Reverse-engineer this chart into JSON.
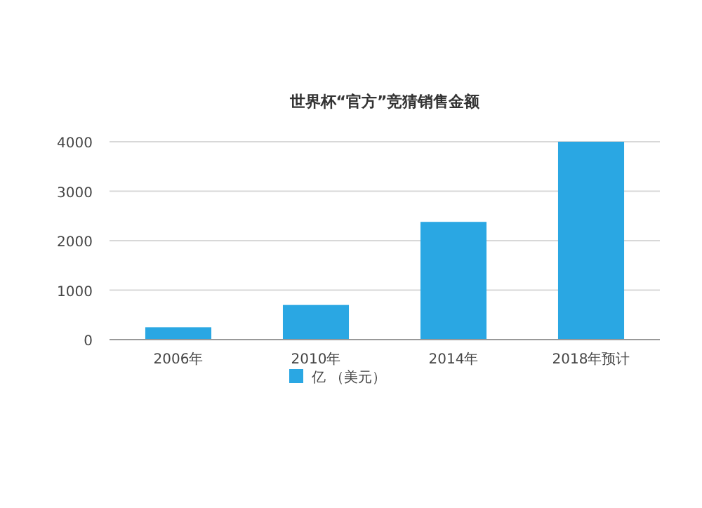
{
  "chart_data": {
    "type": "bar",
    "title": "世界杯“官方”竞猜销售金额",
    "categories": [
      "2006年",
      "2010年",
      "2014年",
      "2018年预计"
    ],
    "series": [
      {
        "name": "亿 （美元）",
        "color": "#2aa7e3",
        "values": [
          250,
          700,
          2380,
          4000
        ]
      }
    ],
    "ylim": [
      0,
      4000
    ],
    "yticks": [
      0,
      1000,
      2000,
      3000,
      4000
    ],
    "grid": "y",
    "legend": "bottom"
  }
}
